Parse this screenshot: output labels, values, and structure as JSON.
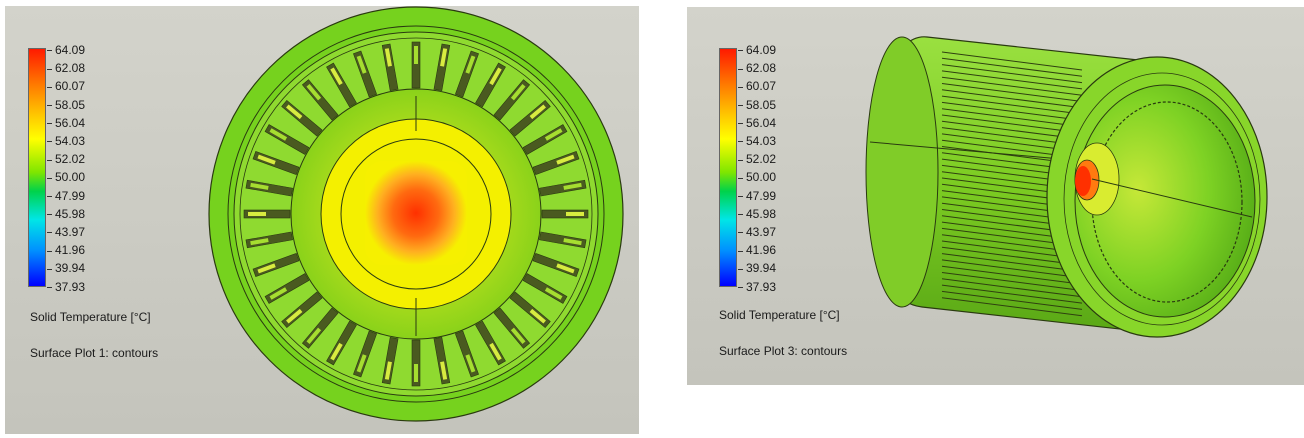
{
  "legend_values": [
    "64.09",
    "62.08",
    "60.07",
    "58.05",
    "56.04",
    "54.03",
    "52.02",
    "50.00",
    "47.99",
    "45.98",
    "43.97",
    "41.96",
    "39.94",
    "37.93"
  ],
  "colors": {
    "background": "#c8c8c0",
    "part_green": "#76d21e",
    "hot": "#ff3a00",
    "warm": "#ffe600"
  },
  "plots": [
    {
      "quantity_label": "Solid Temperature [°C]",
      "plot_label": "Surface Plot 1: contours"
    },
    {
      "quantity_label": "Solid Temperature [°C]",
      "plot_label": "Surface Plot 3: contours"
    }
  ]
}
